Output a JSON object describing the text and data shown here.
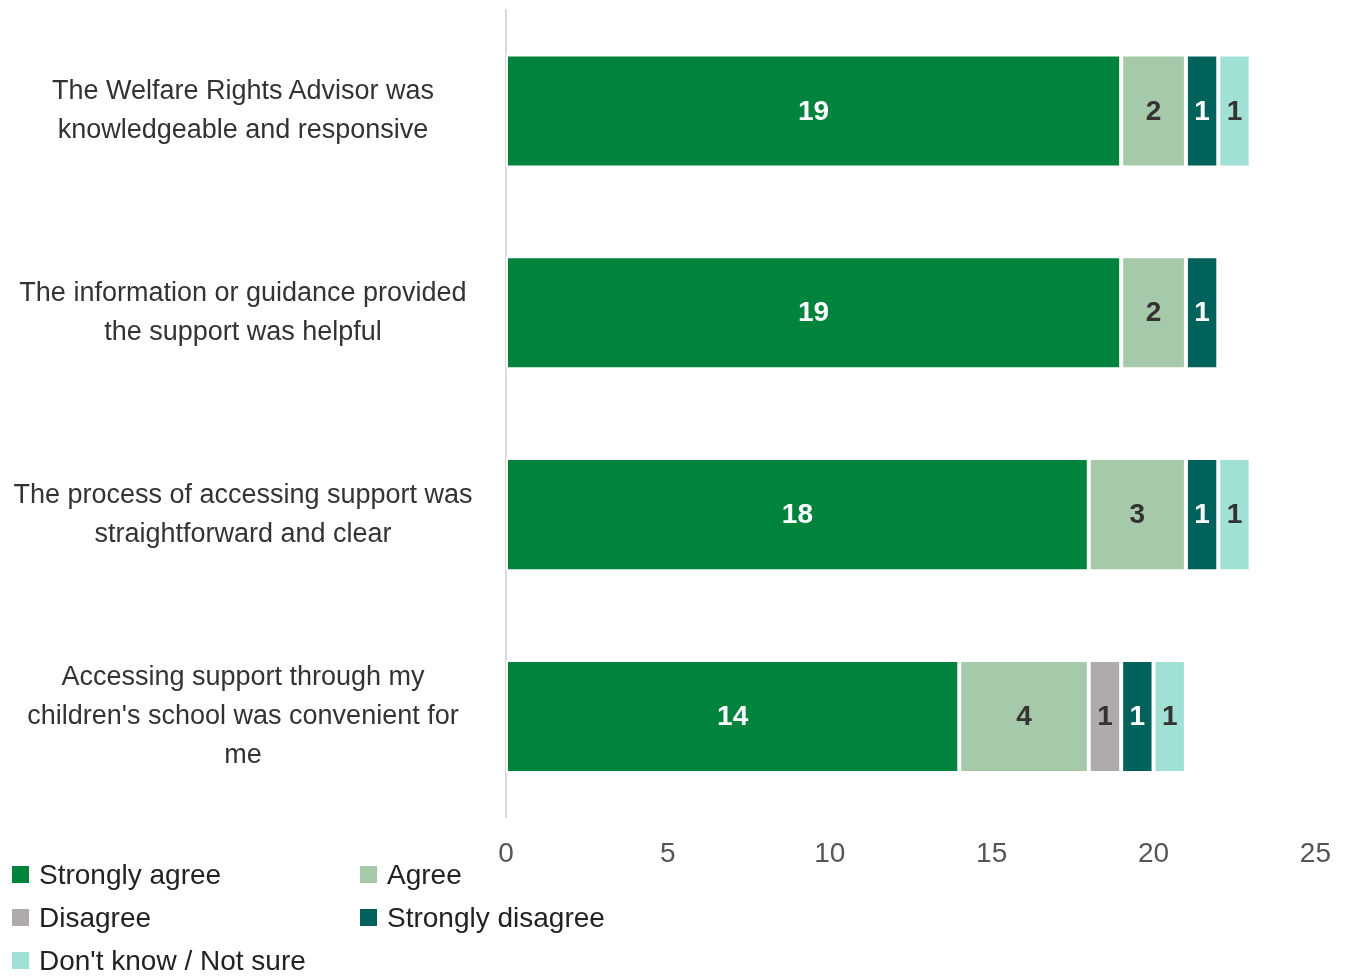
{
  "chart_data": {
    "type": "bar",
    "orientation": "horizontal",
    "stacked": true,
    "categories": [
      "The Welfare Rights Advisor was knowledgeable and responsive",
      "The information or guidance provided the support was helpful",
      "The process of accessing support was straightforward and clear",
      "Accessing support through my children's school was convenient for me"
    ],
    "series": [
      {
        "name": "Strongly agree",
        "color": "#00843d",
        "values": [
          19,
          19,
          18,
          14
        ]
      },
      {
        "name": "Agree",
        "color": "#a5c9a9",
        "values": [
          2,
          2,
          3,
          4
        ]
      },
      {
        "name": "Disagree",
        "color": "#b0abab",
        "values": [
          null,
          null,
          null,
          1
        ]
      },
      {
        "name": "Strongly disagree",
        "color": "#00625a",
        "values": [
          1,
          1,
          1,
          1
        ]
      },
      {
        "name": "Don't know / Not sure",
        "color": "#a0e0d5",
        "values": [
          1,
          null,
          1,
          1
        ]
      }
    ],
    "xlim": [
      0,
      25
    ],
    "xticks": [
      0,
      5,
      10,
      15,
      20,
      25
    ],
    "grid": false,
    "legend": "bottom left",
    "data_labels": true
  }
}
